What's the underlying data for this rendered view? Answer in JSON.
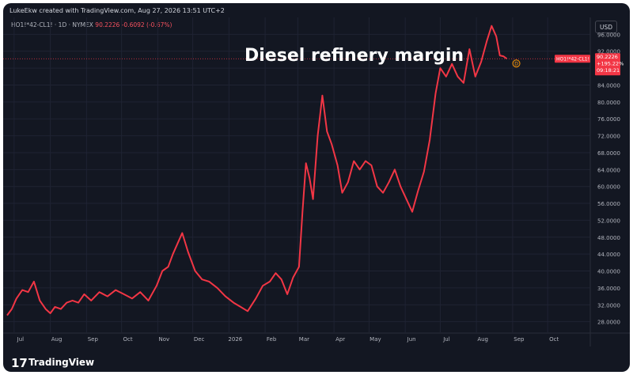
{
  "header": {
    "text": "LukeEkw created with TradingView.com, Aug 27, 2026 13:51 UTC+2"
  },
  "symbol_line": {
    "symbol": "HO1!*42-CL1! · 1D · NYMEX",
    "last": "90.2226",
    "change": "-0.6092 (-0.67%)"
  },
  "title": "Diesel refinery margin",
  "currency_button": "USD",
  "price_tag": {
    "label": "HO1!*42-CL1!",
    "value": "90.2226",
    "pct": "+195.22%",
    "countdown": "09:18:21"
  },
  "dividend_marker": "D",
  "watermark": {
    "logo": "17",
    "text": "TradingView"
  },
  "colors": {
    "background": "#131722",
    "line": "#f23645",
    "grid": "#1f2333",
    "axis_text": "#b2b5be"
  },
  "chart_data": {
    "type": "line",
    "x_tick_labels": [
      "Jul",
      "Aug",
      "Sep",
      "Oct",
      "Nov",
      "Dec",
      "2026",
      "Feb",
      "Mar",
      "Apr",
      "May",
      "Jun",
      "Jul",
      "Aug",
      "Sep",
      "Oct"
    ],
    "y_tick_labels": [
      "28.0000",
      "32.0000",
      "36.0000",
      "40.0000",
      "44.0000",
      "48.0000",
      "52.0000",
      "56.0000",
      "60.0000",
      "64.0000",
      "68.0000",
      "72.0000",
      "76.0000",
      "80.0000",
      "84.0000",
      "88.0000",
      "92.0000",
      "96.0000"
    ],
    "ylim": [
      25.5,
      100
    ],
    "grid": true,
    "series": [
      {
        "x": [
          "2025-06-25",
          "2025-06-29",
          "2025-07-03",
          "2025-07-08",
          "2025-07-13",
          "2025-07-18",
          "2025-07-23",
          "2025-07-28",
          "2025-08-01",
          "2025-08-05",
          "2025-08-10",
          "2025-08-15",
          "2025-08-20",
          "2025-08-25",
          "2025-08-30",
          "2025-09-05",
          "2025-09-12",
          "2025-09-19",
          "2025-09-26",
          "2025-10-03",
          "2025-10-10",
          "2025-10-17",
          "2025-10-24",
          "2025-10-31",
          "2025-11-05",
          "2025-11-10",
          "2025-11-14",
          "2025-11-18",
          "2025-11-22",
          "2025-11-27",
          "2025-12-03",
          "2025-12-09",
          "2025-12-15",
          "2025-12-22",
          "2025-12-29",
          "2026-01-05",
          "2026-01-11",
          "2026-01-17",
          "2026-01-24",
          "2026-01-30",
          "2026-02-05",
          "2026-02-10",
          "2026-02-15",
          "2026-02-20",
          "2026-02-25",
          "2026-03-02",
          "2026-03-05",
          "2026-03-08",
          "2026-03-11",
          "2026-03-14",
          "2026-03-18",
          "2026-03-22",
          "2026-03-26",
          "2026-03-30",
          "2026-04-04",
          "2026-04-08",
          "2026-04-13",
          "2026-04-18",
          "2026-04-23",
          "2026-04-28",
          "2026-05-03",
          "2026-05-08",
          "2026-05-13",
          "2026-05-18",
          "2026-05-23",
          "2026-05-28",
          "2026-06-02",
          "2026-06-07",
          "2026-06-12",
          "2026-06-17",
          "2026-06-22",
          "2026-06-27",
          "2026-07-01",
          "2026-07-06",
          "2026-07-11",
          "2026-07-16",
          "2026-07-21",
          "2026-07-26",
          "2026-07-31",
          "2026-08-05",
          "2026-08-10",
          "2026-08-14",
          "2026-08-18",
          "2026-08-21",
          "2026-08-24",
          "2026-08-27"
        ],
        "y": [
          29.5,
          31.0,
          33.5,
          35.5,
          35.0,
          37.5,
          33.0,
          31.0,
          30.0,
          31.5,
          31.0,
          32.5,
          33.0,
          32.5,
          34.5,
          33.0,
          35.0,
          34.0,
          35.5,
          34.5,
          33.5,
          35.0,
          33.0,
          36.5,
          40.0,
          41.0,
          44.0,
          46.5,
          49.0,
          44.5,
          40.0,
          38.0,
          37.5,
          36.0,
          34.0,
          32.5,
          31.5,
          30.5,
          33.5,
          36.5,
          37.5,
          39.5,
          38.0,
          34.5,
          38.5,
          41.0,
          54.0,
          65.5,
          62.0,
          57.0,
          72.0,
          81.5,
          73.0,
          70.0,
          65.0,
          58.5,
          61.0,
          66.0,
          64.0,
          66.0,
          65.0,
          60.0,
          58.5,
          61.0,
          64.0,
          60.0,
          57.0,
          54.0,
          59.0,
          63.5,
          71.0,
          82.0,
          88.0,
          86.0,
          89.0,
          86.0,
          84.5,
          92.5,
          86.0,
          89.5,
          94.5,
          98.0,
          95.5,
          91.0,
          90.8,
          90.2226
        ]
      }
    ]
  }
}
